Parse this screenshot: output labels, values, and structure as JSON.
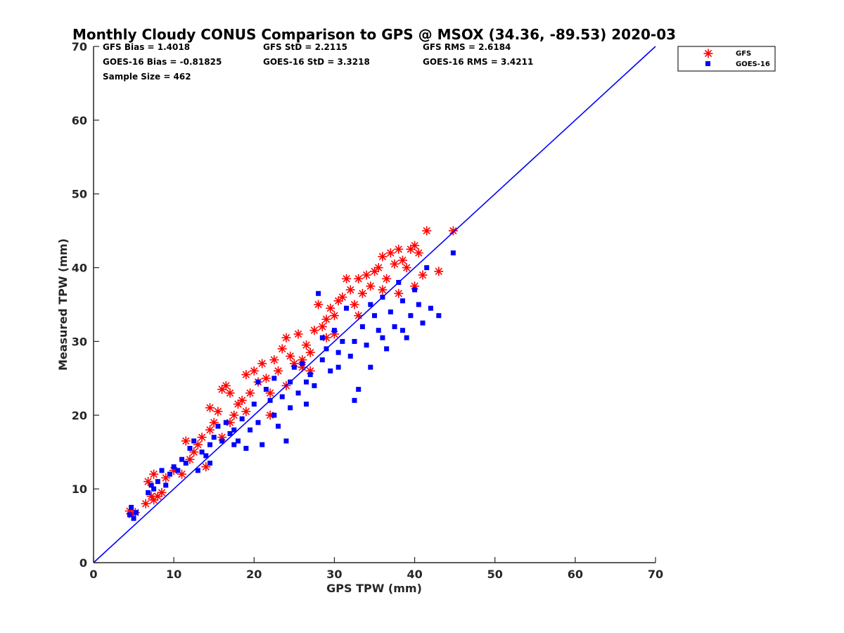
{
  "chart_data": {
    "type": "scatter",
    "title": "Monthly Cloudy CONUS Comparison to GPS @ MSOX (34.36, -89.53) 2020-03",
    "xlabel": "GPS TPW (mm)",
    "ylabel": "Measured TPW (mm)",
    "xlim": [
      0,
      70
    ],
    "ylim": [
      0,
      70
    ],
    "xticks": [
      "0",
      "10",
      "20",
      "30",
      "40",
      "50",
      "60",
      "70"
    ],
    "yticks": [
      "0",
      "10",
      "20",
      "30",
      "40",
      "50",
      "60",
      "70"
    ],
    "grid": false,
    "legend_position": "top-right",
    "stats": {
      "gfs_bias": "GFS Bias = 1.4018",
      "gfs_std": "GFS StD = 2.2115",
      "gfs_rms": "GFS RMS = 2.6184",
      "goes_bias": "GOES-16 Bias = -0.81825",
      "goes_std": "GOES-16 StD = 3.3218",
      "goes_rms": "GOES-16 RMS = 3.4211",
      "sample_size": "Sample Size = 462"
    },
    "reference_line": {
      "x": [
        0,
        70
      ],
      "y": [
        0,
        70
      ],
      "color": "#0000ff"
    },
    "series": [
      {
        "name": "GFS",
        "marker": "asterisk",
        "color": "#ff0000",
        "points": [
          [
            4.5,
            7.0
          ],
          [
            4.8,
            6.5
          ],
          [
            5.2,
            6.8
          ],
          [
            6.5,
            8.0
          ],
          [
            6.8,
            11.0
          ],
          [
            7.2,
            9.0
          ],
          [
            7.5,
            8.5
          ],
          [
            8.0,
            9.0
          ],
          [
            8.5,
            9.5
          ],
          [
            9.0,
            11.5
          ],
          [
            7.5,
            12.0
          ],
          [
            10.0,
            12.5
          ],
          [
            11.0,
            12.0
          ],
          [
            11.5,
            16.5
          ],
          [
            12.0,
            14.0
          ],
          [
            12.5,
            15.0
          ],
          [
            13.0,
            16.0
          ],
          [
            13.5,
            17.0
          ],
          [
            14.0,
            13.0
          ],
          [
            14.5,
            18.0
          ],
          [
            14.5,
            21.0
          ],
          [
            15.0,
            19.0
          ],
          [
            15.5,
            20.5
          ],
          [
            16.0,
            23.5
          ],
          [
            16.5,
            24.0
          ],
          [
            17.0,
            23.0
          ],
          [
            17.0,
            19.0
          ],
          [
            17.5,
            20.0
          ],
          [
            18.0,
            21.5
          ],
          [
            18.5,
            22.0
          ],
          [
            19.0,
            25.5
          ],
          [
            19.5,
            23.0
          ],
          [
            20.0,
            26.0
          ],
          [
            20.5,
            24.5
          ],
          [
            21.0,
            27.0
          ],
          [
            21.5,
            25.0
          ],
          [
            22.0,
            23.0
          ],
          [
            22.5,
            27.5
          ],
          [
            23.0,
            26.0
          ],
          [
            23.5,
            29.0
          ],
          [
            24.0,
            30.5
          ],
          [
            24.5,
            28.0
          ],
          [
            25.0,
            27.0
          ],
          [
            25.5,
            31.0
          ],
          [
            26.0,
            26.5
          ],
          [
            26.5,
            29.5
          ],
          [
            27.0,
            28.5
          ],
          [
            27.5,
            31.5
          ],
          [
            28.0,
            35.0
          ],
          [
            28.5,
            32.0
          ],
          [
            29.0,
            33.0
          ],
          [
            29.5,
            34.5
          ],
          [
            30.0,
            33.5
          ],
          [
            30.5,
            35.5
          ],
          [
            31.0,
            36.0
          ],
          [
            31.5,
            38.5
          ],
          [
            32.0,
            37.0
          ],
          [
            32.5,
            35.0
          ],
          [
            33.0,
            38.5
          ],
          [
            33.5,
            36.5
          ],
          [
            34.0,
            39.0
          ],
          [
            34.5,
            37.5
          ],
          [
            35.0,
            39.5
          ],
          [
            35.5,
            40.0
          ],
          [
            36.0,
            41.5
          ],
          [
            36.5,
            38.5
          ],
          [
            37.0,
            42.0
          ],
          [
            37.5,
            40.5
          ],
          [
            38.0,
            42.5
          ],
          [
            38.5,
            41.0
          ],
          [
            39.0,
            40.0
          ],
          [
            39.5,
            42.5
          ],
          [
            40.0,
            43.0
          ],
          [
            40.5,
            42.0
          ],
          [
            41.0,
            39.0
          ],
          [
            41.5,
            45.0
          ],
          [
            43.0,
            39.5
          ],
          [
            44.8,
            45.0
          ],
          [
            22.0,
            20.0
          ],
          [
            24.0,
            24.0
          ],
          [
            26.0,
            27.5
          ],
          [
            30.0,
            31.0
          ],
          [
            33.0,
            33.5
          ],
          [
            36.0,
            37.0
          ],
          [
            38.0,
            36.5
          ],
          [
            40.0,
            37.5
          ],
          [
            19.0,
            20.5
          ],
          [
            16.0,
            17.0
          ],
          [
            27.0,
            26.0
          ],
          [
            29.0,
            30.5
          ]
        ]
      },
      {
        "name": "GOES-16",
        "marker": "square",
        "color": "#0000ff",
        "points": [
          [
            4.5,
            6.5
          ],
          [
            4.7,
            7.5
          ],
          [
            5.0,
            6.0
          ],
          [
            5.3,
            6.8
          ],
          [
            6.8,
            9.5
          ],
          [
            7.2,
            10.5
          ],
          [
            7.5,
            10.0
          ],
          [
            8.0,
            11.0
          ],
          [
            8.5,
            12.5
          ],
          [
            9.0,
            10.5
          ],
          [
            9.5,
            12.0
          ],
          [
            10.0,
            13.0
          ],
          [
            10.5,
            12.5
          ],
          [
            11.0,
            14.0
          ],
          [
            11.5,
            13.5
          ],
          [
            12.0,
            15.5
          ],
          [
            12.5,
            16.5
          ],
          [
            13.0,
            12.5
          ],
          [
            13.5,
            15.0
          ],
          [
            14.0,
            14.5
          ],
          [
            14.5,
            16.0
          ],
          [
            15.0,
            17.0
          ],
          [
            15.5,
            18.5
          ],
          [
            16.0,
            16.5
          ],
          [
            16.5,
            19.0
          ],
          [
            17.0,
            17.5
          ],
          [
            17.5,
            18.0
          ],
          [
            18.0,
            16.5
          ],
          [
            18.5,
            19.5
          ],
          [
            19.0,
            15.5
          ],
          [
            19.5,
            18.0
          ],
          [
            20.0,
            21.5
          ],
          [
            20.5,
            24.5
          ],
          [
            21.0,
            16.0
          ],
          [
            21.5,
            23.5
          ],
          [
            22.0,
            22.0
          ],
          [
            22.5,
            25.0
          ],
          [
            23.0,
            18.5
          ],
          [
            23.5,
            22.5
          ],
          [
            24.0,
            16.5
          ],
          [
            24.5,
            24.5
          ],
          [
            25.0,
            26.5
          ],
          [
            25.5,
            23.0
          ],
          [
            26.0,
            27.0
          ],
          [
            26.5,
            21.5
          ],
          [
            27.0,
            25.5
          ],
          [
            27.5,
            24.0
          ],
          [
            28.0,
            36.5
          ],
          [
            28.5,
            27.5
          ],
          [
            29.0,
            29.0
          ],
          [
            29.5,
            26.0
          ],
          [
            30.0,
            31.5
          ],
          [
            30.5,
            28.5
          ],
          [
            31.0,
            30.0
          ],
          [
            31.5,
            34.5
          ],
          [
            32.0,
            28.0
          ],
          [
            32.5,
            22.0
          ],
          [
            33.0,
            23.5
          ],
          [
            33.5,
            32.0
          ],
          [
            34.0,
            29.5
          ],
          [
            34.5,
            35.0
          ],
          [
            35.0,
            33.5
          ],
          [
            35.5,
            31.5
          ],
          [
            36.0,
            36.0
          ],
          [
            36.5,
            29.0
          ],
          [
            37.0,
            34.0
          ],
          [
            37.5,
            32.0
          ],
          [
            38.0,
            38.0
          ],
          [
            38.5,
            35.5
          ],
          [
            39.0,
            30.5
          ],
          [
            39.5,
            33.5
          ],
          [
            40.0,
            37.0
          ],
          [
            40.5,
            35.0
          ],
          [
            41.0,
            32.5
          ],
          [
            41.5,
            40.0
          ],
          [
            42.0,
            34.5
          ],
          [
            43.0,
            33.5
          ],
          [
            44.8,
            42.0
          ],
          [
            22.5,
            20.0
          ],
          [
            24.5,
            21.0
          ],
          [
            26.5,
            24.5
          ],
          [
            28.5,
            30.5
          ],
          [
            30.5,
            26.5
          ],
          [
            32.5,
            30.0
          ],
          [
            34.5,
            26.5
          ],
          [
            36.0,
            30.5
          ],
          [
            38.5,
            31.5
          ],
          [
            20.5,
            19.0
          ],
          [
            17.5,
            16.0
          ],
          [
            14.5,
            13.5
          ]
        ]
      }
    ]
  }
}
